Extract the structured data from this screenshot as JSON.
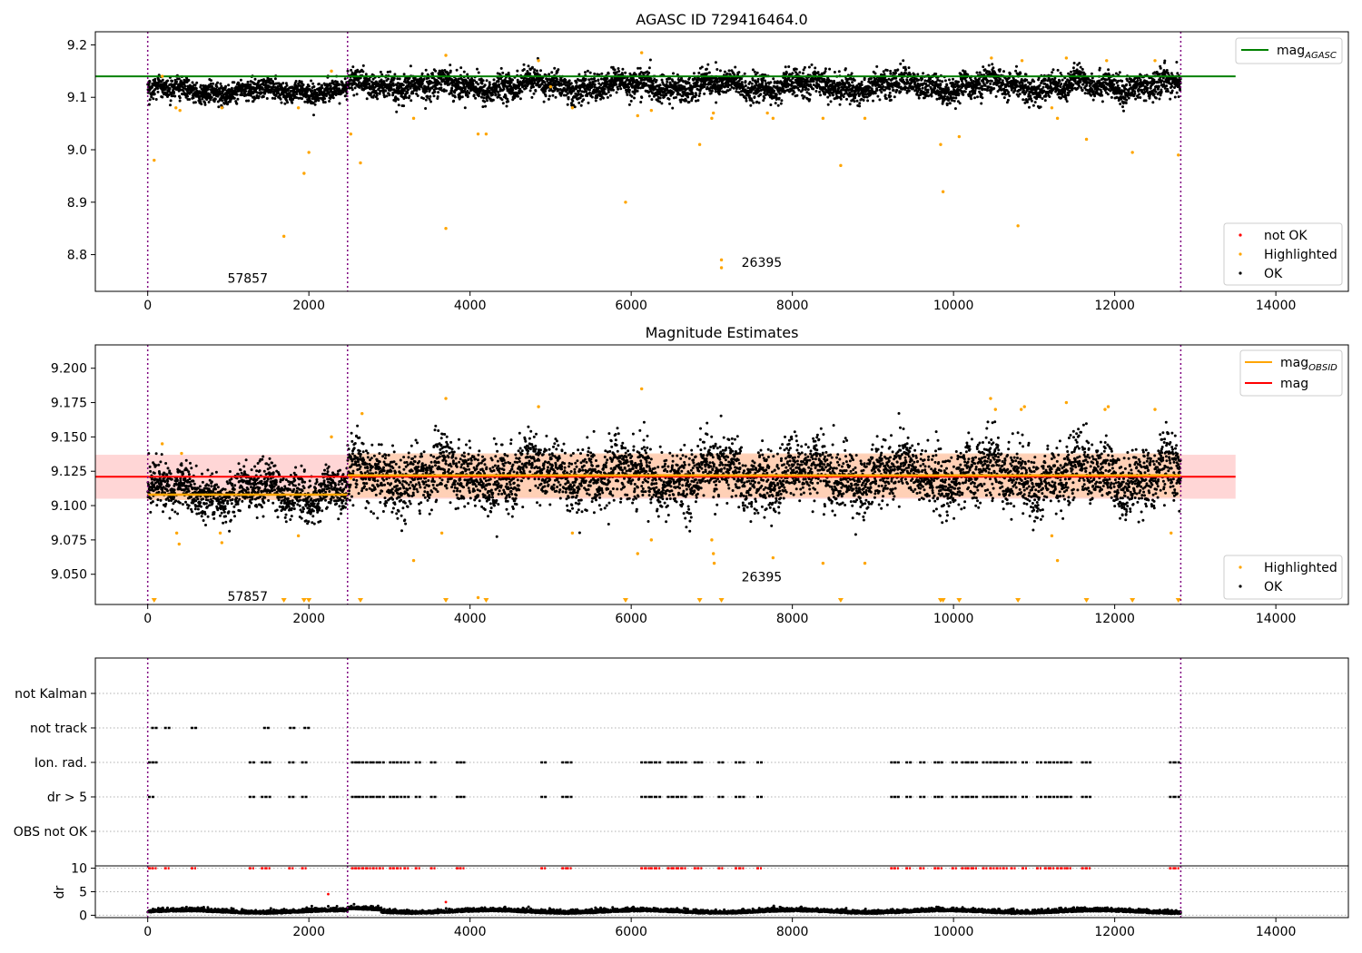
{
  "figure": {
    "x_ticks": [
      "0",
      "2000",
      "4000",
      "6000",
      "8000",
      "10000",
      "12000",
      "14000"
    ],
    "x_tick_values": [
      0,
      2000,
      4000,
      6000,
      8000,
      10000,
      12000,
      14000
    ],
    "colors": {
      "ok": "#000000",
      "highlighted": "#ffa500",
      "not_ok": "#ff0000",
      "agasc": "#008000",
      "obsid": "#ffa500",
      "mag": "#ff0000",
      "boundary": "#800080",
      "red_band": "#ffd6d6",
      "orange_band": "#ffcfb0"
    }
  },
  "chart_data": [
    {
      "type": "scatter",
      "title": "AGASC ID 729416464.0",
      "xlim": [
        -650,
        14900
      ],
      "ylim": [
        8.73,
        9.225
      ],
      "y_ticks": [
        "9.2",
        "9.1",
        "9.0",
        "8.9",
        "8.8"
      ],
      "y_tick_values": [
        9.2,
        9.1,
        9.0,
        8.9,
        8.8
      ],
      "legend_top": {
        "position": "top-right",
        "entries": [
          {
            "label": "mag",
            "sub": "AGASC"
          }
        ]
      },
      "legend_bottom": {
        "position": "bottom-right",
        "entries": [
          "not OK",
          "Highlighted",
          "OK"
        ]
      },
      "agasc_mag": 9.14,
      "agasc_x_range": [
        -650,
        13500
      ],
      "obsid_boundaries": [
        0,
        2480,
        12820
      ],
      "annotations": [
        {
          "text": "57857",
          "x": 1240,
          "y": 8.755
        },
        {
          "text": "26395",
          "x": 7620,
          "y": 8.785
        }
      ],
      "ok_segments": [
        {
          "x": [
            0,
            2480
          ],
          "y_mean": 9.112,
          "spread": 0.014
        },
        {
          "x": [
            2480,
            12820
          ],
          "y_mean": 9.122,
          "spread": 0.018
        }
      ],
      "highlighted_points": [
        [
          80,
          8.98
        ],
        [
          180,
          9.14
        ],
        [
          350,
          9.08
        ],
        [
          400,
          9.075
        ],
        [
          920,
          9.08
        ],
        [
          1690,
          8.835
        ],
        [
          1870,
          9.08
        ],
        [
          1940,
          8.955
        ],
        [
          2000,
          8.995
        ],
        [
          2280,
          9.15
        ],
        [
          2520,
          9.03
        ],
        [
          2640,
          8.975
        ],
        [
          3300,
          9.06
        ],
        [
          3700,
          8.85
        ],
        [
          3700,
          9.18
        ],
        [
          4100,
          9.03
        ],
        [
          4200,
          9.03
        ],
        [
          4850,
          9.17
        ],
        [
          5000,
          9.12
        ],
        [
          5270,
          9.08
        ],
        [
          5930,
          8.9
        ],
        [
          6080,
          9.065
        ],
        [
          6130,
          9.185
        ],
        [
          6250,
          9.075
        ],
        [
          6850,
          9.01
        ],
        [
          7000,
          9.06
        ],
        [
          7020,
          9.07
        ],
        [
          7120,
          8.79
        ],
        [
          7120,
          8.775
        ],
        [
          7690,
          9.07
        ],
        [
          7760,
          9.06
        ],
        [
          8380,
          9.06
        ],
        [
          8600,
          8.97
        ],
        [
          8900,
          9.06
        ],
        [
          9840,
          9.01
        ],
        [
          9870,
          8.92
        ],
        [
          10070,
          9.025
        ],
        [
          10470,
          9.175
        ],
        [
          10800,
          8.855
        ],
        [
          10850,
          9.17
        ],
        [
          11220,
          9.08
        ],
        [
          11290,
          9.06
        ],
        [
          11400,
          9.175
        ],
        [
          11650,
          9.02
        ],
        [
          11900,
          9.17
        ],
        [
          12220,
          8.995
        ],
        [
          12500,
          9.17
        ],
        [
          12790,
          8.99
        ]
      ]
    },
    {
      "type": "scatter",
      "title": "Magnitude Estimates",
      "xlim": [
        -650,
        14900
      ],
      "ylim": [
        9.028,
        9.217
      ],
      "y_ticks": [
        "9.200",
        "9.175",
        "9.150",
        "9.125",
        "9.100",
        "9.075",
        "9.050"
      ],
      "y_tick_values": [
        9.2,
        9.175,
        9.15,
        9.125,
        9.1,
        9.075,
        9.05
      ],
      "legend_top": {
        "position": "top-right",
        "entries": [
          {
            "label": "mag",
            "sub": "OBSID"
          },
          {
            "label": "mag",
            "sub": ""
          }
        ]
      },
      "legend_bottom": {
        "position": "bottom-right",
        "entries": [
          "Highlighted",
          "OK"
        ]
      },
      "mag": 9.121,
      "mag_band": [
        9.105,
        9.137
      ],
      "mag_x_range": [
        -650,
        13500
      ],
      "obsid_mags": [
        {
          "x": [
            0,
            2480
          ],
          "mag": 9.108,
          "band": [
            9.104,
            9.112
          ]
        },
        {
          "x": [
            2480,
            12820
          ],
          "mag": 9.122,
          "band": [
            9.106,
            9.138
          ]
        }
      ],
      "obsid_boundaries": [
        0,
        2480,
        12820
      ],
      "annotations": [
        {
          "text": "57857",
          "x": 1240,
          "y": 9.034
        },
        {
          "text": "26395",
          "x": 7620,
          "y": 9.048
        }
      ],
      "ok_segments": [
        {
          "x": [
            0,
            2480
          ],
          "y_mean": 9.11,
          "spread": 0.011
        },
        {
          "x": [
            2480,
            12820
          ],
          "y_mean": 9.122,
          "spread": 0.016
        }
      ],
      "highlighted_points": [
        [
          180,
          9.145
        ],
        [
          360,
          9.08
        ],
        [
          390,
          9.072
        ],
        [
          420,
          9.138
        ],
        [
          900,
          9.08
        ],
        [
          920,
          9.073
        ],
        [
          1870,
          9.078
        ],
        [
          2280,
          9.15
        ],
        [
          2520,
          9.12
        ],
        [
          2660,
          9.167
        ],
        [
          3300,
          9.06
        ],
        [
          3650,
          9.08
        ],
        [
          3700,
          9.178
        ],
        [
          4100,
          9.033
        ],
        [
          4850,
          9.172
        ],
        [
          5270,
          9.08
        ],
        [
          6080,
          9.065
        ],
        [
          6130,
          9.185
        ],
        [
          6250,
          9.075
        ],
        [
          7000,
          9.075
        ],
        [
          7020,
          9.065
        ],
        [
          7030,
          9.058
        ],
        [
          7760,
          9.062
        ],
        [
          8380,
          9.058
        ],
        [
          8900,
          9.058
        ],
        [
          10460,
          9.178
        ],
        [
          10520,
          9.17
        ],
        [
          10840,
          9.17
        ],
        [
          10880,
          9.172
        ],
        [
          11220,
          9.078
        ],
        [
          11290,
          9.06
        ],
        [
          11400,
          9.175
        ],
        [
          11880,
          9.17
        ],
        [
          11920,
          9.172
        ],
        [
          12500,
          9.17
        ],
        [
          12700,
          9.08
        ]
      ],
      "lower_limit_markers": [
        80,
        1690,
        1940,
        2000,
        2640,
        3700,
        4200,
        5930,
        6850,
        7120,
        8600,
        9840,
        9870,
        10070,
        10800,
        11650,
        12220,
        12790
      ]
    },
    {
      "type": "scatter",
      "title": "",
      "xlim": [
        -650,
        14900
      ],
      "flag_rows": [
        "not Kalman",
        "not track",
        "Ion. rad.",
        "dr > 5",
        "OBS not OK"
      ],
      "flag_events": {
        "not Kalman": [],
        "not track": [
          60,
          220,
          550,
          1450,
          1770,
          1950
        ],
        "Ion. rad.": [
          20,
          60,
          1270,
          1420,
          1470,
          1760,
          1920,
          2540,
          2580,
          2620,
          2670,
          2720,
          2800,
          2880,
          3010,
          3050,
          3100,
          3190,
          3330,
          3520,
          3840,
          3880,
          4890,
          5150,
          5210,
          6130,
          6180,
          6250,
          6310,
          6460,
          6520,
          6580,
          6630,
          6790,
          6830,
          7090,
          7300,
          7350,
          7570,
          9230,
          9270,
          9420,
          9590,
          9770,
          9810,
          9990,
          10110,
          10180,
          10240,
          10370,
          10460,
          10540,
          10620,
          10720,
          10860,
          11040,
          11140,
          11200,
          11290,
          11340,
          11410,
          11600,
          11650,
          12690,
          12750
        ],
        "dr > 5": [
          20,
          1270,
          1420,
          1470,
          1760,
          1920,
          2540,
          2580,
          2620,
          2670,
          2720,
          2800,
          2880,
          3010,
          3050,
          3100,
          3190,
          3330,
          3520,
          3840,
          3880,
          4890,
          5150,
          5210,
          6130,
          6180,
          6250,
          6310,
          6460,
          6520,
          6580,
          6630,
          6790,
          6830,
          7090,
          7300,
          7350,
          7570,
          9230,
          9270,
          9420,
          9590,
          9770,
          9810,
          9990,
          10110,
          10180,
          10240,
          10370,
          10460,
          10540,
          10620,
          10720,
          10860,
          11040,
          11140,
          11200,
          11290,
          11340,
          11410,
          11600,
          11650,
          12690,
          12750
        ],
        "OBS not OK": []
      },
      "obsid_boundaries": [
        0,
        2480,
        12820
      ]
    },
    {
      "type": "scatter",
      "title": "",
      "ylabel": "dr",
      "xlim": [
        -650,
        14900
      ],
      "ylim": [
        -0.5,
        10.5
      ],
      "y_ticks": [
        "10",
        "5",
        "0"
      ],
      "y_tick_values": [
        10,
        5,
        0
      ],
      "clipped_value": 10,
      "baseline_mean": 0.6,
      "baseline_spread": 0.4,
      "red_clipped_x": [
        20,
        60,
        220,
        550,
        1270,
        1420,
        1470,
        1760,
        1920,
        2540,
        2580,
        2620,
        2670,
        2720,
        2800,
        2880,
        3010,
        3050,
        3100,
        3190,
        3330,
        3520,
        3840,
        3880,
        4890,
        5150,
        5210,
        6130,
        6180,
        6250,
        6310,
        6460,
        6520,
        6580,
        6630,
        6790,
        6830,
        7090,
        7300,
        7350,
        7570,
        9230,
        9270,
        9420,
        9590,
        9770,
        9810,
        9990,
        10110,
        10180,
        10240,
        10370,
        10460,
        10540,
        10620,
        10720,
        10860,
        11040,
        11140,
        11200,
        11290,
        11340,
        11410,
        11600,
        11650,
        12690,
        12750
      ],
      "red_points": [
        [
          2240,
          4.5
        ],
        [
          3700,
          2.8
        ]
      ],
      "obsid_boundaries": [
        0,
        2480,
        12820
      ]
    }
  ]
}
